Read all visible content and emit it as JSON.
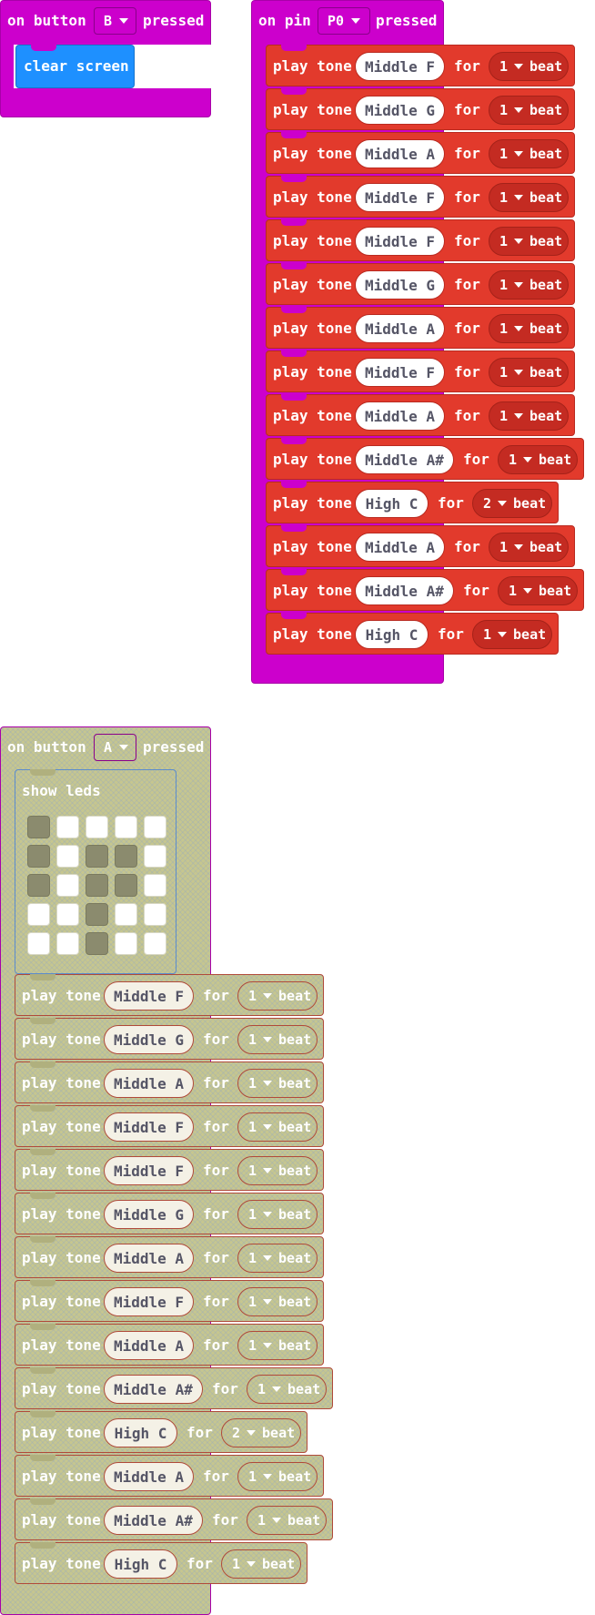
{
  "colors": {
    "event_magenta": "#cc00cc",
    "basic_blue": "#1e90ff",
    "music_red": "#e23a2c",
    "disabled_khaki": "#c6c68f"
  },
  "button_b_block": {
    "prefix": "on button",
    "button": "B",
    "suffix": "pressed",
    "inner": "clear screen"
  },
  "pin_block": {
    "prefix": "on pin",
    "pin": "P0",
    "suffix": "pressed",
    "tones": [
      {
        "note": "Middle F",
        "beats": "1"
      },
      {
        "note": "Middle G",
        "beats": "1"
      },
      {
        "note": "Middle A",
        "beats": "1"
      },
      {
        "note": "Middle F",
        "beats": "1"
      },
      {
        "note": "Middle F",
        "beats": "1"
      },
      {
        "note": "Middle G",
        "beats": "1"
      },
      {
        "note": "Middle A",
        "beats": "1"
      },
      {
        "note": "Middle F",
        "beats": "1"
      },
      {
        "note": "Middle A",
        "beats": "1"
      },
      {
        "note": "Middle A#",
        "beats": "1"
      },
      {
        "note": "High C",
        "beats": "2"
      },
      {
        "note": "Middle A",
        "beats": "1"
      },
      {
        "note": "Middle A#",
        "beats": "1"
      },
      {
        "note": "High C",
        "beats": "1"
      }
    ]
  },
  "button_a_block": {
    "prefix": "on button",
    "button": "A",
    "suffix": "pressed",
    "show_leds_label": "show leds",
    "leds": [
      [
        1,
        0,
        0,
        0,
        0
      ],
      [
        1,
        0,
        1,
        1,
        0
      ],
      [
        1,
        0,
        1,
        1,
        0
      ],
      [
        0,
        0,
        1,
        0,
        0
      ],
      [
        0,
        0,
        1,
        0,
        0
      ]
    ],
    "tones": [
      {
        "note": "Middle F",
        "beats": "1"
      },
      {
        "note": "Middle G",
        "beats": "1"
      },
      {
        "note": "Middle A",
        "beats": "1"
      },
      {
        "note": "Middle F",
        "beats": "1"
      },
      {
        "note": "Middle F",
        "beats": "1"
      },
      {
        "note": "Middle G",
        "beats": "1"
      },
      {
        "note": "Middle A",
        "beats": "1"
      },
      {
        "note": "Middle F",
        "beats": "1"
      },
      {
        "note": "Middle A",
        "beats": "1"
      },
      {
        "note": "Middle A#",
        "beats": "1"
      },
      {
        "note": "High C",
        "beats": "2"
      },
      {
        "note": "Middle A",
        "beats": "1"
      },
      {
        "note": "Middle A#",
        "beats": "1"
      },
      {
        "note": "High C",
        "beats": "1"
      }
    ]
  },
  "labels": {
    "play_tone": "play tone",
    "for": "for",
    "beat": "beat"
  }
}
